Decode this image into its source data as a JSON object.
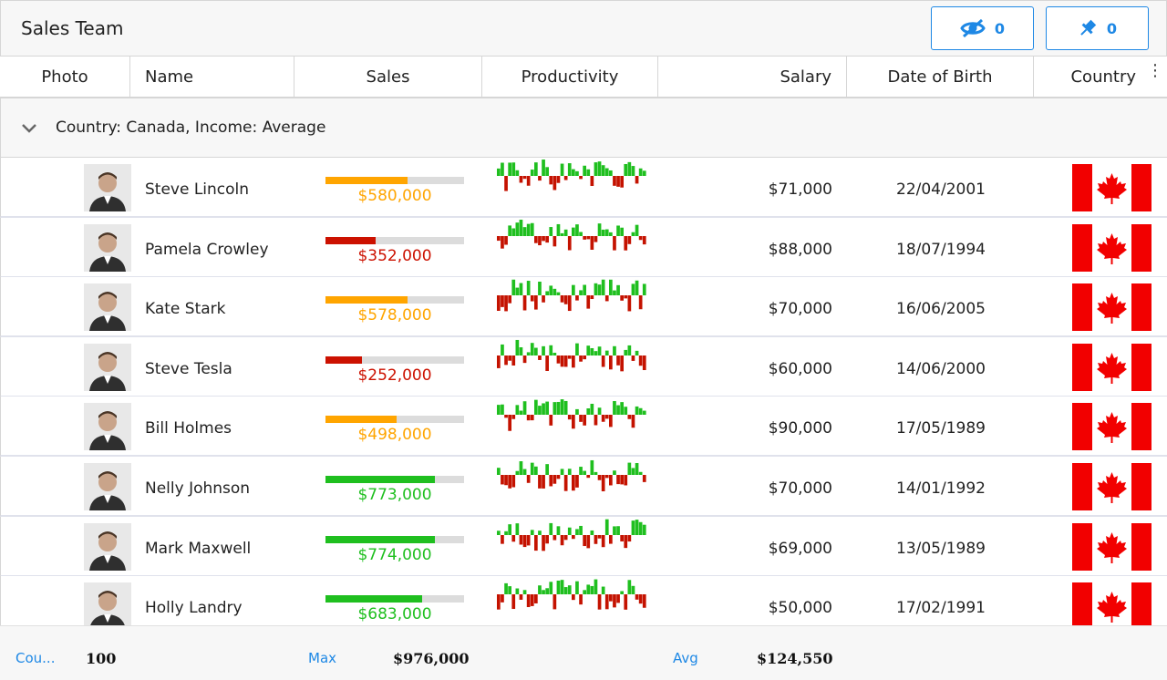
{
  "toolbar": {
    "title": "Sales Team",
    "hidden_count": "0",
    "pinned_count": "0"
  },
  "columns": [
    "Photo",
    "Name",
    "Sales",
    "Productivity",
    "Salary",
    "Date of Birth",
    "Country"
  ],
  "group": {
    "label": "Country: Canada, Income: Average"
  },
  "colors": {
    "accent": "#1e88e5",
    "sales_high": "#1fbf1f",
    "sales_mid": "#ffa500",
    "sales_low": "#cc1100",
    "spark_up": "#1fbf1f",
    "spark_down": "#c41200"
  },
  "rows": [
    {
      "name": "Steve Lincoln",
      "sales": "$580,000",
      "sales_fraction": 0.59,
      "sales_level": "mid",
      "salary": "$71,000",
      "dob": "22/04/2001",
      "country": "Canada"
    },
    {
      "name": "Pamela Crowley",
      "sales": "$352,000",
      "sales_fraction": 0.36,
      "sales_level": "low",
      "salary": "$88,000",
      "dob": "18/07/1994",
      "country": "Canada"
    },
    {
      "name": "Kate Stark",
      "sales": "$578,000",
      "sales_fraction": 0.59,
      "sales_level": "mid",
      "salary": "$70,000",
      "dob": "16/06/2005",
      "country": "Canada"
    },
    {
      "name": "Steve Tesla",
      "sales": "$252,000",
      "sales_fraction": 0.26,
      "sales_level": "low",
      "salary": "$60,000",
      "dob": "14/06/2000",
      "country": "Canada"
    },
    {
      "name": "Bill Holmes",
      "sales": "$498,000",
      "sales_fraction": 0.51,
      "sales_level": "mid",
      "salary": "$90,000",
      "dob": "17/05/1989",
      "country": "Canada"
    },
    {
      "name": "Nelly Johnson",
      "sales": "$773,000",
      "sales_fraction": 0.79,
      "sales_level": "high",
      "salary": "$70,000",
      "dob": "14/01/1992",
      "country": "Canada"
    },
    {
      "name": "Mark Maxwell",
      "sales": "$774,000",
      "sales_fraction": 0.79,
      "sales_level": "high",
      "salary": "$69,000",
      "dob": "13/05/1989",
      "country": "Canada"
    },
    {
      "name": "Holly Landry",
      "sales": "$683,000",
      "sales_fraction": 0.7,
      "sales_level": "high",
      "salary": "$50,000",
      "dob": "17/02/1991",
      "country": "Canada"
    }
  ],
  "footer": {
    "count_label": "Cou...",
    "count_value": "100",
    "max_label": "Max",
    "max_value": "$976,000",
    "avg_label": "Avg",
    "avg_value": "$124,550"
  }
}
